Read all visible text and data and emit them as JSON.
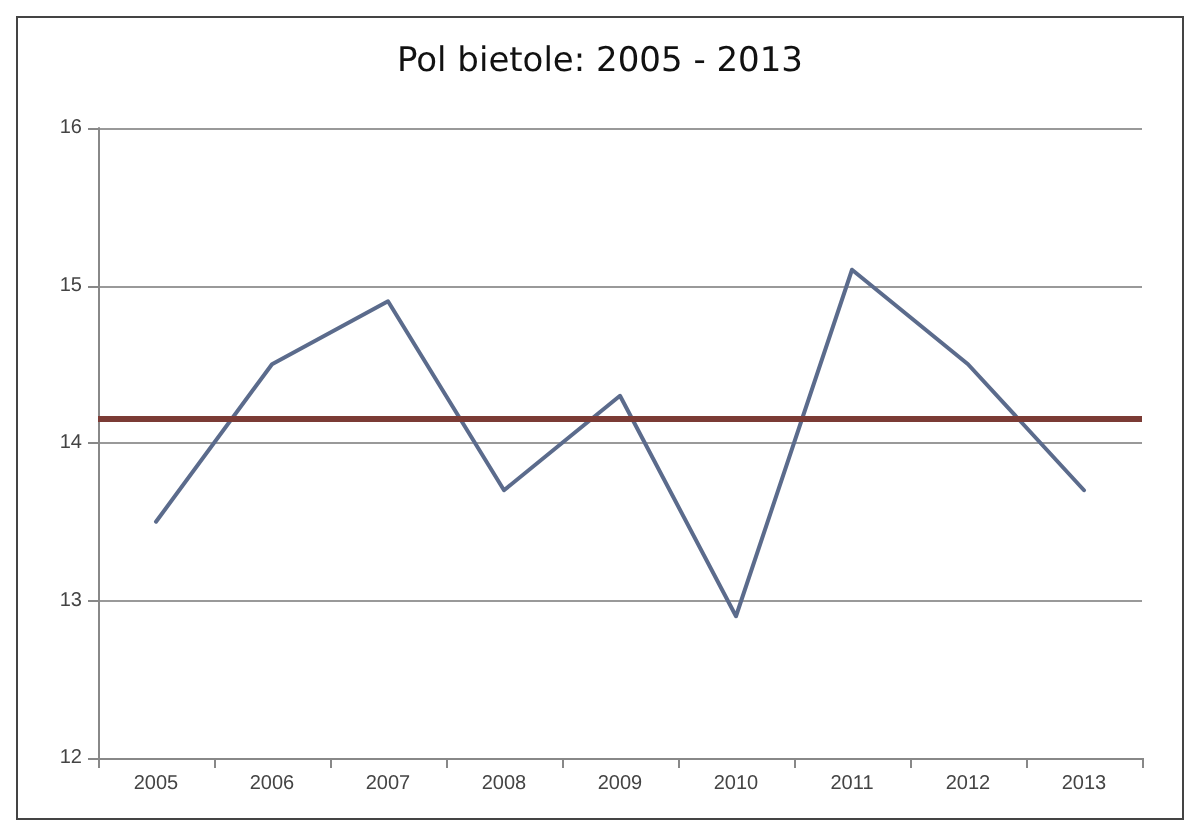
{
  "chart_data": {
    "type": "line",
    "title": "Pol bietole: 2005 - 2013",
    "categories": [
      "2005",
      "2006",
      "2007",
      "2008",
      "2009",
      "2010",
      "2011",
      "2012",
      "2013"
    ],
    "series": [
      {
        "color": "#5b6b8c",
        "values": [
          13.5,
          14.5,
          14.9,
          13.7,
          14.3,
          12.9,
          15.1,
          14.5,
          13.7
        ]
      }
    ],
    "ylim": [
      12,
      16
    ],
    "yticks": [
      12,
      13,
      14,
      15,
      16
    ],
    "grid": "y",
    "marker": "none",
    "line_style": "solid",
    "ref_lines": [
      {
        "axis": "y",
        "value": 14.15,
        "color": "#7b3b35"
      }
    ]
  }
}
